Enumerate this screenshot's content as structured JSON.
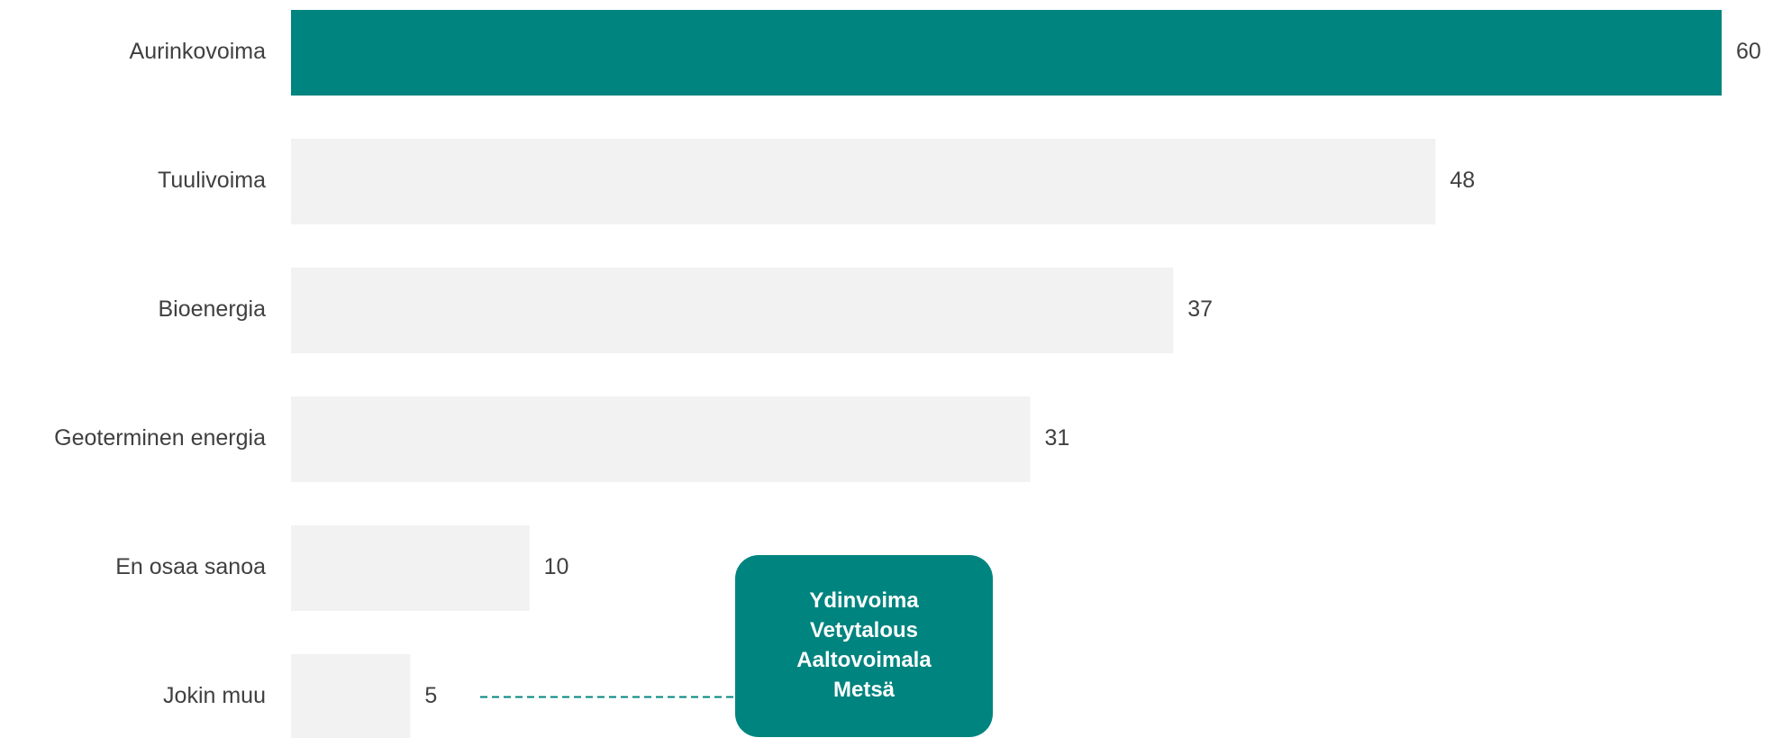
{
  "chart_data": {
    "type": "bar",
    "orientation": "horizontal",
    "categories": [
      "Aurinkovoima",
      "Tuulivoima",
      "Bioenergia",
      "Geoterminen energia",
      "En osaa sanoa",
      "Jokin muu"
    ],
    "values": [
      60,
      48,
      37,
      31,
      10,
      5
    ],
    "colors": [
      "#00847f",
      "#f2f2f2",
      "#f2f2f2",
      "#f2f2f2",
      "#f2f2f2",
      "#f2f2f2"
    ],
    "annotation": {
      "lines": [
        "Ydinvoima",
        "Vetytalous",
        "Aaltovoimala",
        "Metsä"
      ],
      "color": "#00847f"
    }
  }
}
